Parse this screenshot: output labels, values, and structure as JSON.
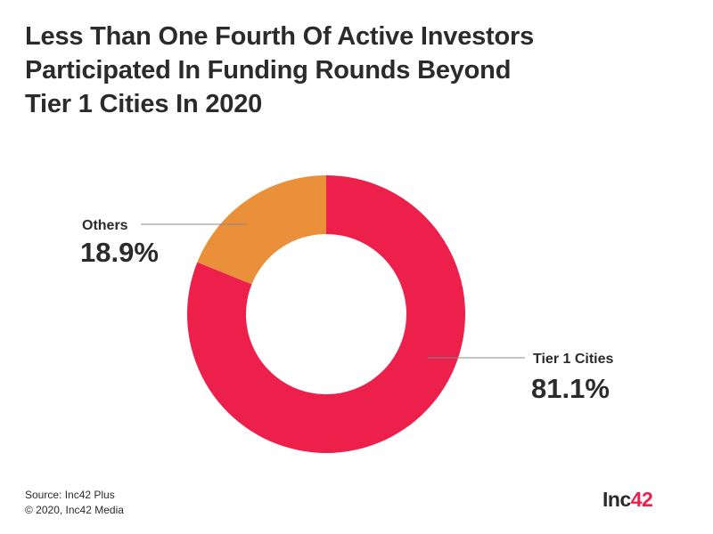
{
  "title_lines": [
    "Less Than One Fourth Of Active Investors",
    "Participated In Funding Rounds Beyond",
    "Tier 1 Cities In 2020"
  ],
  "chart_data": {
    "type": "pie",
    "title": "Less Than One Fourth Of Active Investors Participated In Funding Rounds Beyond Tier 1 Cities In 2020",
    "donut": true,
    "slices": [
      {
        "label": "Tier 1 Cities",
        "value": 81.1,
        "display": "81.1%",
        "color": "#ed1f4b"
      },
      {
        "label": "Others",
        "value": 18.9,
        "display": "18.9%",
        "color": "#ea8f3a"
      }
    ],
    "legend": "none"
  },
  "footer": {
    "source": "Source: Inc42 Plus",
    "copyright": "© 2020, Inc42 Media"
  },
  "logo": {
    "main": "Inc",
    "accent": "42"
  }
}
